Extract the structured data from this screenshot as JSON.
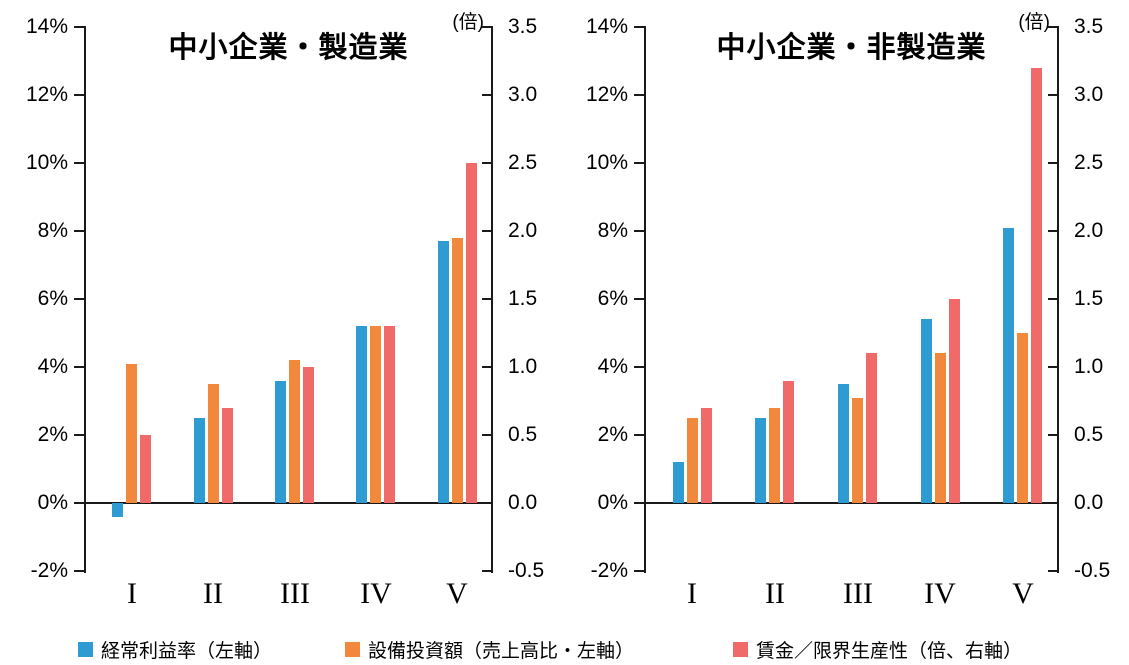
{
  "legend": {
    "items": [
      {
        "label": "経常利益率（左軸）",
        "color": "#2e9bd2"
      },
      {
        "label": "設備投資額（売上高比・左軸）",
        "color": "#f1883c"
      },
      {
        "label": "賃金／限界生産性（倍、右軸）",
        "color": "#f06a6a"
      }
    ]
  },
  "chart_data": [
    {
      "type": "bar",
      "title": "中小企業・製造業",
      "categories": [
        "I",
        "II",
        "III",
        "IV",
        "V"
      ],
      "grid": false,
      "legend_position": "bottom",
      "left_axis": {
        "unit": "%",
        "min": -2,
        "max": 14,
        "tick_labels": [
          "14%",
          "12%",
          "10%",
          "8%",
          "6%",
          "4%",
          "2%",
          "0%",
          "-2%"
        ]
      },
      "right_axis": {
        "unit": "倍",
        "unit_label": "(倍)",
        "min": -0.5,
        "max": 3.5,
        "tick_labels": [
          "3.5",
          "3.0",
          "2.5",
          "2.0",
          "1.5",
          "1.0",
          "0.5",
          "0.0",
          "-0.5"
        ]
      },
      "series": [
        {
          "name": "経常利益率（左軸）",
          "axis": "left",
          "values": [
            -0.4,
            2.5,
            3.6,
            5.2,
            7.7
          ]
        },
        {
          "name": "設備投資額（売上高比・左軸）",
          "axis": "left",
          "values": [
            4.1,
            3.5,
            4.2,
            5.2,
            7.8
          ]
        },
        {
          "name": "賃金／限界生産性（倍、右軸）",
          "axis": "right",
          "values": [
            0.5,
            0.7,
            1.0,
            1.3,
            2.5
          ]
        }
      ]
    },
    {
      "type": "bar",
      "title": "中小企業・非製造業",
      "categories": [
        "I",
        "II",
        "III",
        "IV",
        "V"
      ],
      "grid": false,
      "legend_position": "bottom",
      "left_axis": {
        "unit": "%",
        "min": -2,
        "max": 14,
        "tick_labels": [
          "14%",
          "12%",
          "10%",
          "8%",
          "6%",
          "4%",
          "2%",
          "0%",
          "-2%"
        ]
      },
      "right_axis": {
        "unit": "倍",
        "unit_label": "(倍)",
        "min": -0.5,
        "max": 3.5,
        "tick_labels": [
          "3.5",
          "3.0",
          "2.5",
          "2.0",
          "1.5",
          "1.0",
          "0.5",
          "0.0",
          "-0.5"
        ]
      },
      "series": [
        {
          "name": "経常利益率（左軸）",
          "axis": "left",
          "values": [
            1.2,
            2.5,
            3.5,
            5.4,
            8.1
          ]
        },
        {
          "name": "設備投資額（売上高比・左軸）",
          "axis": "left",
          "values": [
            2.5,
            2.8,
            3.1,
            4.4,
            5.0
          ]
        },
        {
          "name": "賃金／限界生産性（倍、右軸）",
          "axis": "right",
          "values": [
            0.7,
            0.9,
            1.1,
            1.5,
            3.2
          ]
        }
      ]
    }
  ]
}
